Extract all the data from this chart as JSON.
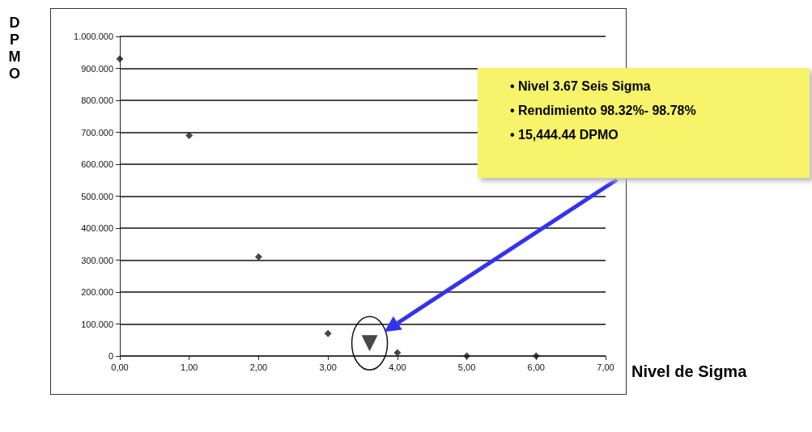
{
  "chart_data": {
    "type": "scatter",
    "xlabel": "Nivel de Sigma",
    "ylabel": "DPMO",
    "xlim": [
      0,
      7
    ],
    "xticks": [
      {
        "value": 0,
        "label": "0,00"
      },
      {
        "value": 1,
        "label": "1,00"
      },
      {
        "value": 2,
        "label": "2,00"
      },
      {
        "value": 3,
        "label": "3,00"
      },
      {
        "value": 4,
        "label": "4,00"
      },
      {
        "value": 5,
        "label": "5,00"
      },
      {
        "value": 6,
        "label": "6,00"
      },
      {
        "value": 7,
        "label": "7,00"
      }
    ],
    "ylim": [
      0,
      1000000
    ],
    "yticks": [
      0,
      {
        "value": 100000,
        "label": "100.000"
      },
      {
        "value": 200000,
        "label": "200.000"
      },
      {
        "value": 300000,
        "label": "300.000"
      },
      {
        "value": 400000,
        "label": "400.000"
      },
      {
        "value": 500000,
        "label": "500.000"
      },
      {
        "value": 600000,
        "label": "600.000"
      },
      {
        "value": 700000,
        "label": "700.000"
      },
      {
        "value": 800000,
        "label": "800.000"
      },
      {
        "value": 900000,
        "label": "900.000"
      },
      {
        "value": 1000000,
        "label": "1.000.000"
      }
    ],
    "grid": "y",
    "series": [
      {
        "x": [
          0,
          1,
          2,
          3,
          4,
          5,
          6
        ],
        "values": [
          930000,
          690000,
          310000,
          70000,
          10000,
          0,
          0
        ],
        "color": "#1a1a1a",
        "marker": "diamond"
      },
      {
        "x": [
          3.6
        ],
        "values": [
          40000
        ],
        "color": "#1a1a1a",
        "marker": "triangle"
      }
    ],
    "annotations": [
      "• Nivel 3.67 Seis Sigma",
      "• Rendimiento 98.32%- 98.78%",
      "• 15,444.44 DPMO"
    ]
  }
}
